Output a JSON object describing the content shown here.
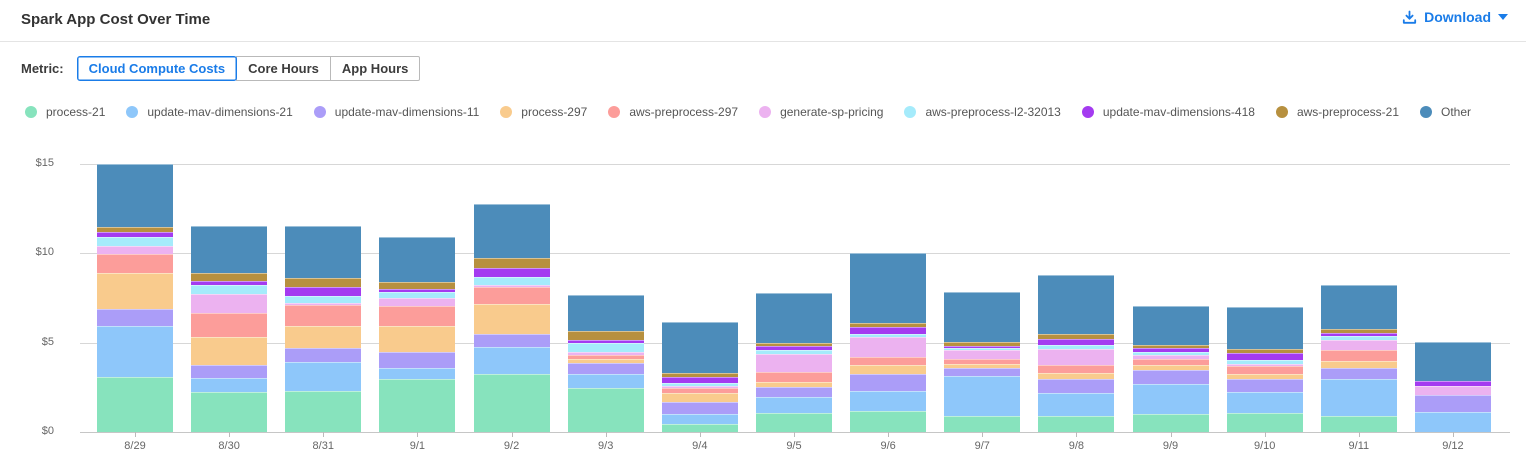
{
  "header": {
    "title": "Spark App Cost Over Time",
    "download_label": "Download"
  },
  "metric_bar": {
    "label": "Metric:",
    "options": [
      {
        "label": "Cloud Compute Costs",
        "selected": true
      },
      {
        "label": "Core Hours",
        "selected": false
      },
      {
        "label": "App Hours",
        "selected": false
      }
    ]
  },
  "colors": {
    "accent_blue": "#1a7ce8",
    "title_text": "#333333",
    "axis_text": "#666666",
    "gridline": "#d7d7d7"
  },
  "chart_data": {
    "type": "bar",
    "stacked": true,
    "title": "Spark App Cost Over Time",
    "xlabel": "",
    "ylabel": "",
    "ylim": [
      0,
      15.75
    ],
    "y_tick_values": [
      0,
      5,
      10,
      15
    ],
    "y_tick_labels": [
      "$0",
      "$5",
      "$10",
      "$15"
    ],
    "grid": true,
    "legend_position": "top",
    "categories": [
      "8/29",
      "8/30",
      "8/31",
      "9/1",
      "9/2",
      "9/3",
      "9/4",
      "9/5",
      "9/6",
      "9/7",
      "9/8",
      "9/9",
      "9/10",
      "9/11",
      "9/12"
    ],
    "series": [
      {
        "name": "process-21",
        "color": "#87e3bd",
        "values": [
          3.09,
          2.25,
          2.28,
          2.97,
          3.24,
          2.45,
          0.47,
          1.09,
          1.2,
          0.9,
          0.9,
          1.03,
          1.09,
          0.9,
          0
        ]
      },
      {
        "name": "update-mav-dimensions-21",
        "color": "#8ec7fa",
        "values": [
          2.82,
          0.8,
          1.65,
          0.6,
          1.5,
          0.79,
          0.56,
          0.88,
          1.1,
          2.26,
          1.27,
          1.64,
          1.13,
          2.07,
          1.13
        ]
      },
      {
        "name": "update-mav-dimensions-11",
        "color": "#ab9df8",
        "values": [
          0.98,
          0.68,
          0.76,
          0.91,
          0.75,
          0.62,
          0.66,
          0.57,
          0.95,
          0.41,
          0.8,
          0.81,
          0.75,
          0.6,
          0.94
        ]
      },
      {
        "name": "process-297",
        "color": "#f9cb8d",
        "values": [
          2.01,
          1.56,
          1.26,
          1.48,
          1.69,
          0.24,
          0.48,
          0.28,
          0.5,
          0.23,
          0.33,
          0.25,
          0.27,
          0.42,
          0
        ]
      },
      {
        "name": "aws-preprocess-297",
        "color": "#fc9d9a",
        "values": [
          1.05,
          1.36,
          1.14,
          1.1,
          0.94,
          0.22,
          0.28,
          0.56,
          0.45,
          0.3,
          0.43,
          0.37,
          0.47,
          0.62,
          0
        ]
      },
      {
        "name": "generate-sp-pricing",
        "color": "#ecb2f0",
        "values": [
          0.45,
          1.07,
          0.13,
          0.43,
          0.11,
          0.16,
          0.15,
          0.98,
          1.1,
          0.51,
          0.94,
          0.19,
          0.11,
          0.52,
          0.48
        ]
      },
      {
        "name": "aws-preprocess-l2-32013",
        "color": "#a5ebfb",
        "values": [
          0.52,
          0.49,
          0.37,
          0.32,
          0.46,
          0.5,
          0.13,
          0.25,
          0.17,
          0.1,
          0.18,
          0.19,
          0.21,
          0.24,
          0
        ]
      },
      {
        "name": "update-mav-dimensions-418",
        "color": "#a43bf0",
        "values": [
          0.27,
          0.22,
          0.5,
          0.19,
          0.49,
          0.19,
          0.37,
          0.18,
          0.4,
          0.12,
          0.38,
          0.22,
          0.37,
          0.19,
          0.33
        ]
      },
      {
        "name": "aws-preprocess-21",
        "color": "#b7903f",
        "values": [
          0.31,
          0.45,
          0.52,
          0.37,
          0.56,
          0.51,
          0.23,
          0.19,
          0.25,
          0.23,
          0.23,
          0.19,
          0.25,
          0.23,
          0
        ]
      },
      {
        "name": "Other",
        "color": "#4c8cba",
        "values": [
          3.52,
          2.67,
          2.9,
          2.55,
          3.01,
          1.99,
          2.84,
          2.79,
          3.88,
          2.78,
          3.33,
          2.17,
          2.35,
          2.41,
          2.18
        ]
      }
    ]
  }
}
